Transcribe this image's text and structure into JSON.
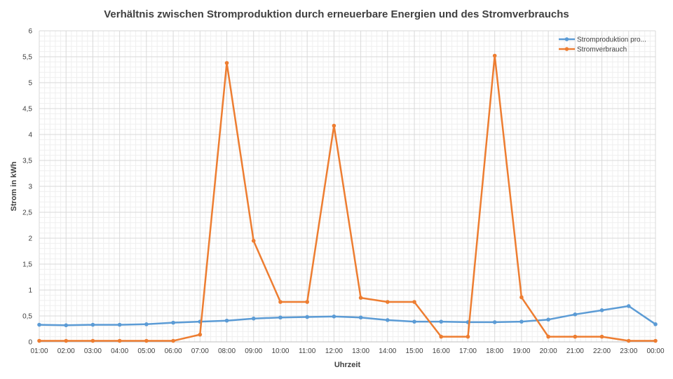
{
  "chart_data": {
    "type": "line",
    "title": "Verhältnis zwischen Stromproduktion durch erneuerbare Energien und des Stromverbrauchs",
    "xlabel": "Uhrzeit",
    "ylabel": "Strom in kWh",
    "ylim": [
      0,
      6
    ],
    "y_ticks": [
      "0",
      "0,5",
      "1",
      "1,5",
      "2",
      "2,5",
      "3",
      "3,5",
      "4",
      "4,5",
      "5",
      "5,5",
      "6"
    ],
    "categories": [
      "01:00",
      "02:00",
      "03:00",
      "04:00",
      "05:00",
      "06:00",
      "07:00",
      "08:00",
      "09:00",
      "10:00",
      "11:00",
      "12:00",
      "13:00",
      "14:00",
      "15:00",
      "16:00",
      "17:00",
      "18:00",
      "19:00",
      "20:00",
      "21:00",
      "22:00",
      "23:00",
      "00:00"
    ],
    "grid": true,
    "legend_position": "top-right",
    "series": [
      {
        "name": "Stromproduktion pro...",
        "color": "#5b9bd5",
        "values": [
          0.33,
          0.32,
          0.33,
          0.33,
          0.34,
          0.37,
          0.39,
          0.41,
          0.45,
          0.47,
          0.48,
          0.49,
          0.47,
          0.42,
          0.39,
          0.39,
          0.38,
          0.38,
          0.39,
          0.43,
          0.53,
          0.61,
          0.69,
          0.34
        ]
      },
      {
        "name": "Stromverbrauch",
        "color": "#ed7d31",
        "values": [
          0.02,
          0.02,
          0.02,
          0.02,
          0.02,
          0.02,
          0.14,
          5.38,
          1.95,
          0.77,
          0.77,
          4.17,
          0.85,
          0.77,
          0.77,
          0.1,
          0.1,
          5.52,
          0.86,
          0.1,
          0.1,
          0.1,
          0.02,
          0.02
        ]
      }
    ]
  }
}
